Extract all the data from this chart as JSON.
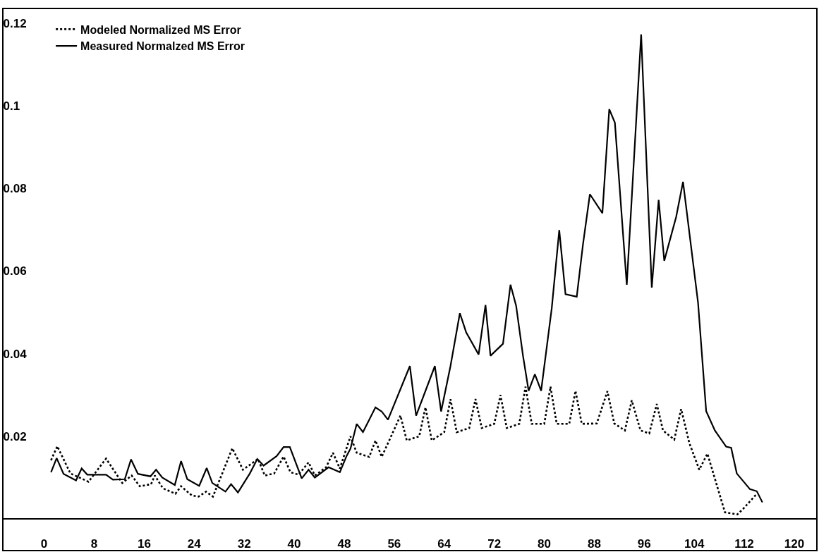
{
  "chart_data": {
    "type": "line",
    "xlim": [
      -6.5,
      123.5
    ],
    "ylim": [
      -0.0075,
      0.1234
    ],
    "xticks": [
      0,
      8,
      16,
      24,
      32,
      40,
      48,
      56,
      64,
      72,
      80,
      88,
      96,
      104,
      112,
      120
    ],
    "yticks": [
      0.02,
      0.04,
      0.06,
      0.08,
      0.1,
      0.12
    ],
    "legend": "top left",
    "marker": "none",
    "series": [
      {
        "name": "Modeled Normalized MS Error",
        "color": "#000000",
        "line_style": "dotted",
        "x": [
          1.1,
          2.1,
          4.2,
          7.1,
          9.9,
          12.5,
          14,
          15.3,
          17.1,
          17.7,
          19,
          21,
          21.9,
          23.6,
          24.7,
          25.9,
          27,
          30.1,
          31.8,
          34.2,
          35.3,
          36.8,
          38.3,
          39.4,
          40.7,
          42.3,
          43.3,
          45.1,
          46.2,
          47.3,
          49,
          50,
          52,
          53,
          54,
          57,
          58,
          60,
          61,
          62,
          64,
          65,
          66,
          68,
          69,
          70,
          72,
          73,
          74,
          76,
          77,
          78,
          80,
          81,
          82,
          84,
          85,
          86,
          88.4,
          90.1,
          91.2,
          92.9,
          94,
          95.4,
          96.8,
          98,
          99,
          100.8,
          101.9,
          103.2,
          104.8,
          106.1,
          108.9,
          110.9,
          111.8,
          113.9
        ],
        "values": [
          0.0142,
          0.0176,
          0.011,
          0.009,
          0.0146,
          0.0087,
          0.0105,
          0.0079,
          0.0084,
          0.0105,
          0.0074,
          0.0061,
          0.0079,
          0.0057,
          0.0054,
          0.0066,
          0.0054,
          0.0171,
          0.0119,
          0.0145,
          0.0105,
          0.011,
          0.0151,
          0.0113,
          0.0107,
          0.0137,
          0.0105,
          0.0125,
          0.016,
          0.0122,
          0.02,
          0.016,
          0.015,
          0.019,
          0.015,
          0.025,
          0.019,
          0.02,
          0.027,
          0.019,
          0.021,
          0.029,
          0.021,
          0.022,
          0.029,
          0.022,
          0.023,
          0.03,
          0.022,
          0.023,
          0.032,
          0.023,
          0.023,
          0.032,
          0.023,
          0.023,
          0.031,
          0.023,
          0.0231,
          0.0309,
          0.0231,
          0.0214,
          0.0287,
          0.0214,
          0.0207,
          0.0278,
          0.0214,
          0.0192,
          0.0266,
          0.0184,
          0.0119,
          0.0158,
          0.0016,
          0.0011,
          0.0024,
          0.0059
        ]
      },
      {
        "name": "Measured Normalzed MS Error",
        "color": "#000000",
        "line_style": "solid",
        "x": [
          1.1,
          2,
          3.1,
          5.1,
          6,
          6.9,
          9.9,
          11,
          12.9,
          13.9,
          15,
          17,
          17.9,
          18.9,
          20.9,
          21.9,
          22.9,
          24.8,
          26,
          26.9,
          29,
          29.9,
          31,
          32.9,
          34.1,
          35.1,
          37.2,
          38.3,
          39.3,
          41.2,
          42.3,
          43.3,
          45.5,
          47.3,
          48.4,
          49,
          50,
          51,
          53,
          54,
          55,
          58.5,
          59.5,
          62.5,
          63.5,
          65,
          66.5,
          67.5,
          69.5,
          70.6,
          71.4,
          73.4,
          74.6,
          75.5,
          76.6,
          77.5,
          78.5,
          79.5,
          81.2,
          82.4,
          83.4,
          85.2,
          86.2,
          87.3,
          89.3,
          90.4,
          91.3,
          93.2,
          95.5,
          97.2,
          98.3,
          99.2,
          101.1,
          102.2,
          104.6,
          105.9,
          107.3,
          109.1,
          109.9,
          110.8,
          112.9,
          114,
          114.9
        ],
        "values": [
          0.0113,
          0.0147,
          0.0109,
          0.0093,
          0.0122,
          0.0107,
          0.0107,
          0.0095,
          0.0096,
          0.0144,
          0.0109,
          0.0103,
          0.0119,
          0.01,
          0.0082,
          0.014,
          0.0096,
          0.008,
          0.0123,
          0.0087,
          0.0066,
          0.0084,
          0.0064,
          0.011,
          0.0145,
          0.0129,
          0.0152,
          0.0174,
          0.0174,
          0.0098,
          0.0119,
          0.01,
          0.0125,
          0.0113,
          0.0153,
          0.017,
          0.023,
          0.021,
          0.027,
          0.026,
          0.024,
          0.037,
          0.025,
          0.037,
          0.026,
          0.037,
          0.0498,
          0.0452,
          0.0398,
          0.0518,
          0.0395,
          0.0424,
          0.0567,
          0.0516,
          0.0395,
          0.031,
          0.035,
          0.031,
          0.051,
          0.0699,
          0.0544,
          0.0538,
          0.0665,
          0.0786,
          0.074,
          0.0992,
          0.0959,
          0.0567,
          0.1173,
          0.056,
          0.0772,
          0.0625,
          0.0731,
          0.0816,
          0.0524,
          0.0261,
          0.0214,
          0.0175,
          0.0172,
          0.011,
          0.0072,
          0.0067,
          0.004
        ]
      }
    ]
  }
}
